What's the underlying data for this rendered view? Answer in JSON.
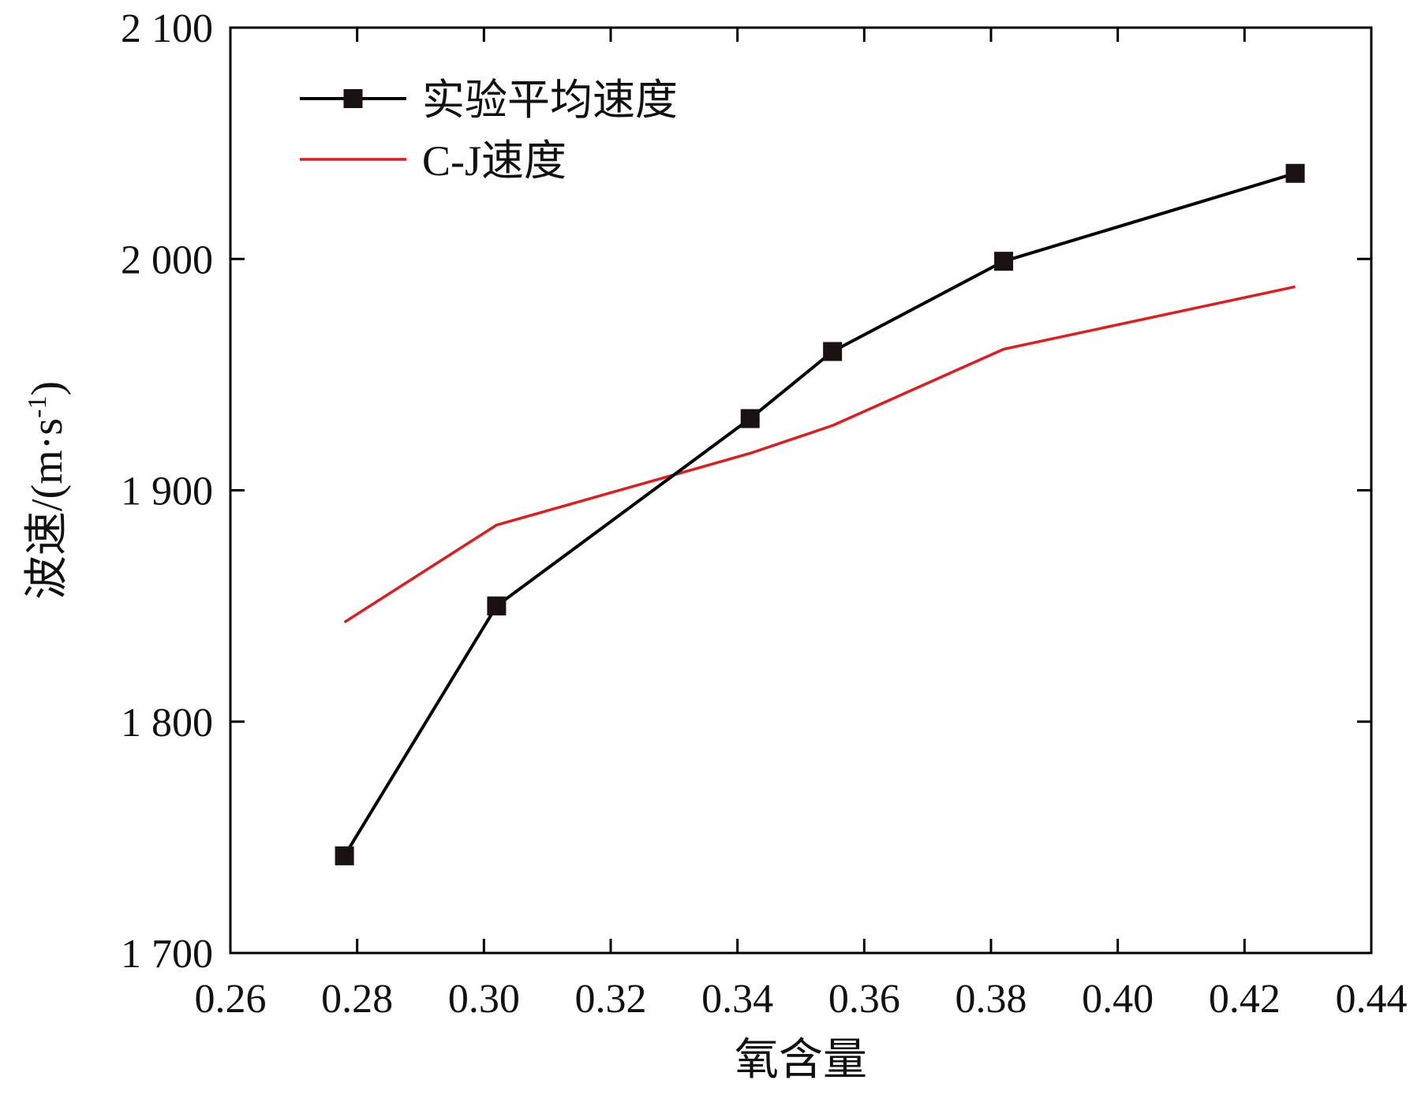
{
  "chart_data": {
    "type": "line",
    "title": "",
    "xlabel": "氧含量",
    "ylabel": "波速/(m·s⁻¹)",
    "ylabel_parts": {
      "main": "波速/(m",
      "dot": "·",
      "unit": "s",
      "exp": "-1",
      "close": ")"
    },
    "xlim": [
      0.26,
      0.44
    ],
    "ylim": [
      1700,
      2100
    ],
    "x_ticks": [
      0.26,
      0.28,
      0.3,
      0.32,
      0.34,
      0.36,
      0.38,
      0.4,
      0.42,
      0.44
    ],
    "x_tick_labels": [
      "0.26",
      "0.28",
      "0.30",
      "0.32",
      "0.34",
      "0.36",
      "0.38",
      "0.40",
      "0.42",
      "0.44"
    ],
    "y_ticks": [
      1700,
      1800,
      1900,
      2000,
      2100
    ],
    "y_tick_labels": [
      "1 700",
      "1 800",
      "1 900",
      "2 000",
      "2 100"
    ],
    "grid": false,
    "legend_position": "top-left",
    "series": [
      {
        "name": "实验平均速度",
        "color": "#000000",
        "marker": "square",
        "marker_color": "#1a1212",
        "x": [
          0.278,
          0.302,
          0.342,
          0.355,
          0.382,
          0.428
        ],
        "y": [
          1742,
          1850,
          1931,
          1960,
          1999,
          2037
        ]
      },
      {
        "name": "C-J速度",
        "color": "#e41a1c",
        "marker": "none",
        "x": [
          0.278,
          0.302,
          0.342,
          0.355,
          0.382,
          0.428
        ],
        "y": [
          1843,
          1885,
          1916,
          1928,
          1961,
          1988
        ]
      }
    ]
  }
}
